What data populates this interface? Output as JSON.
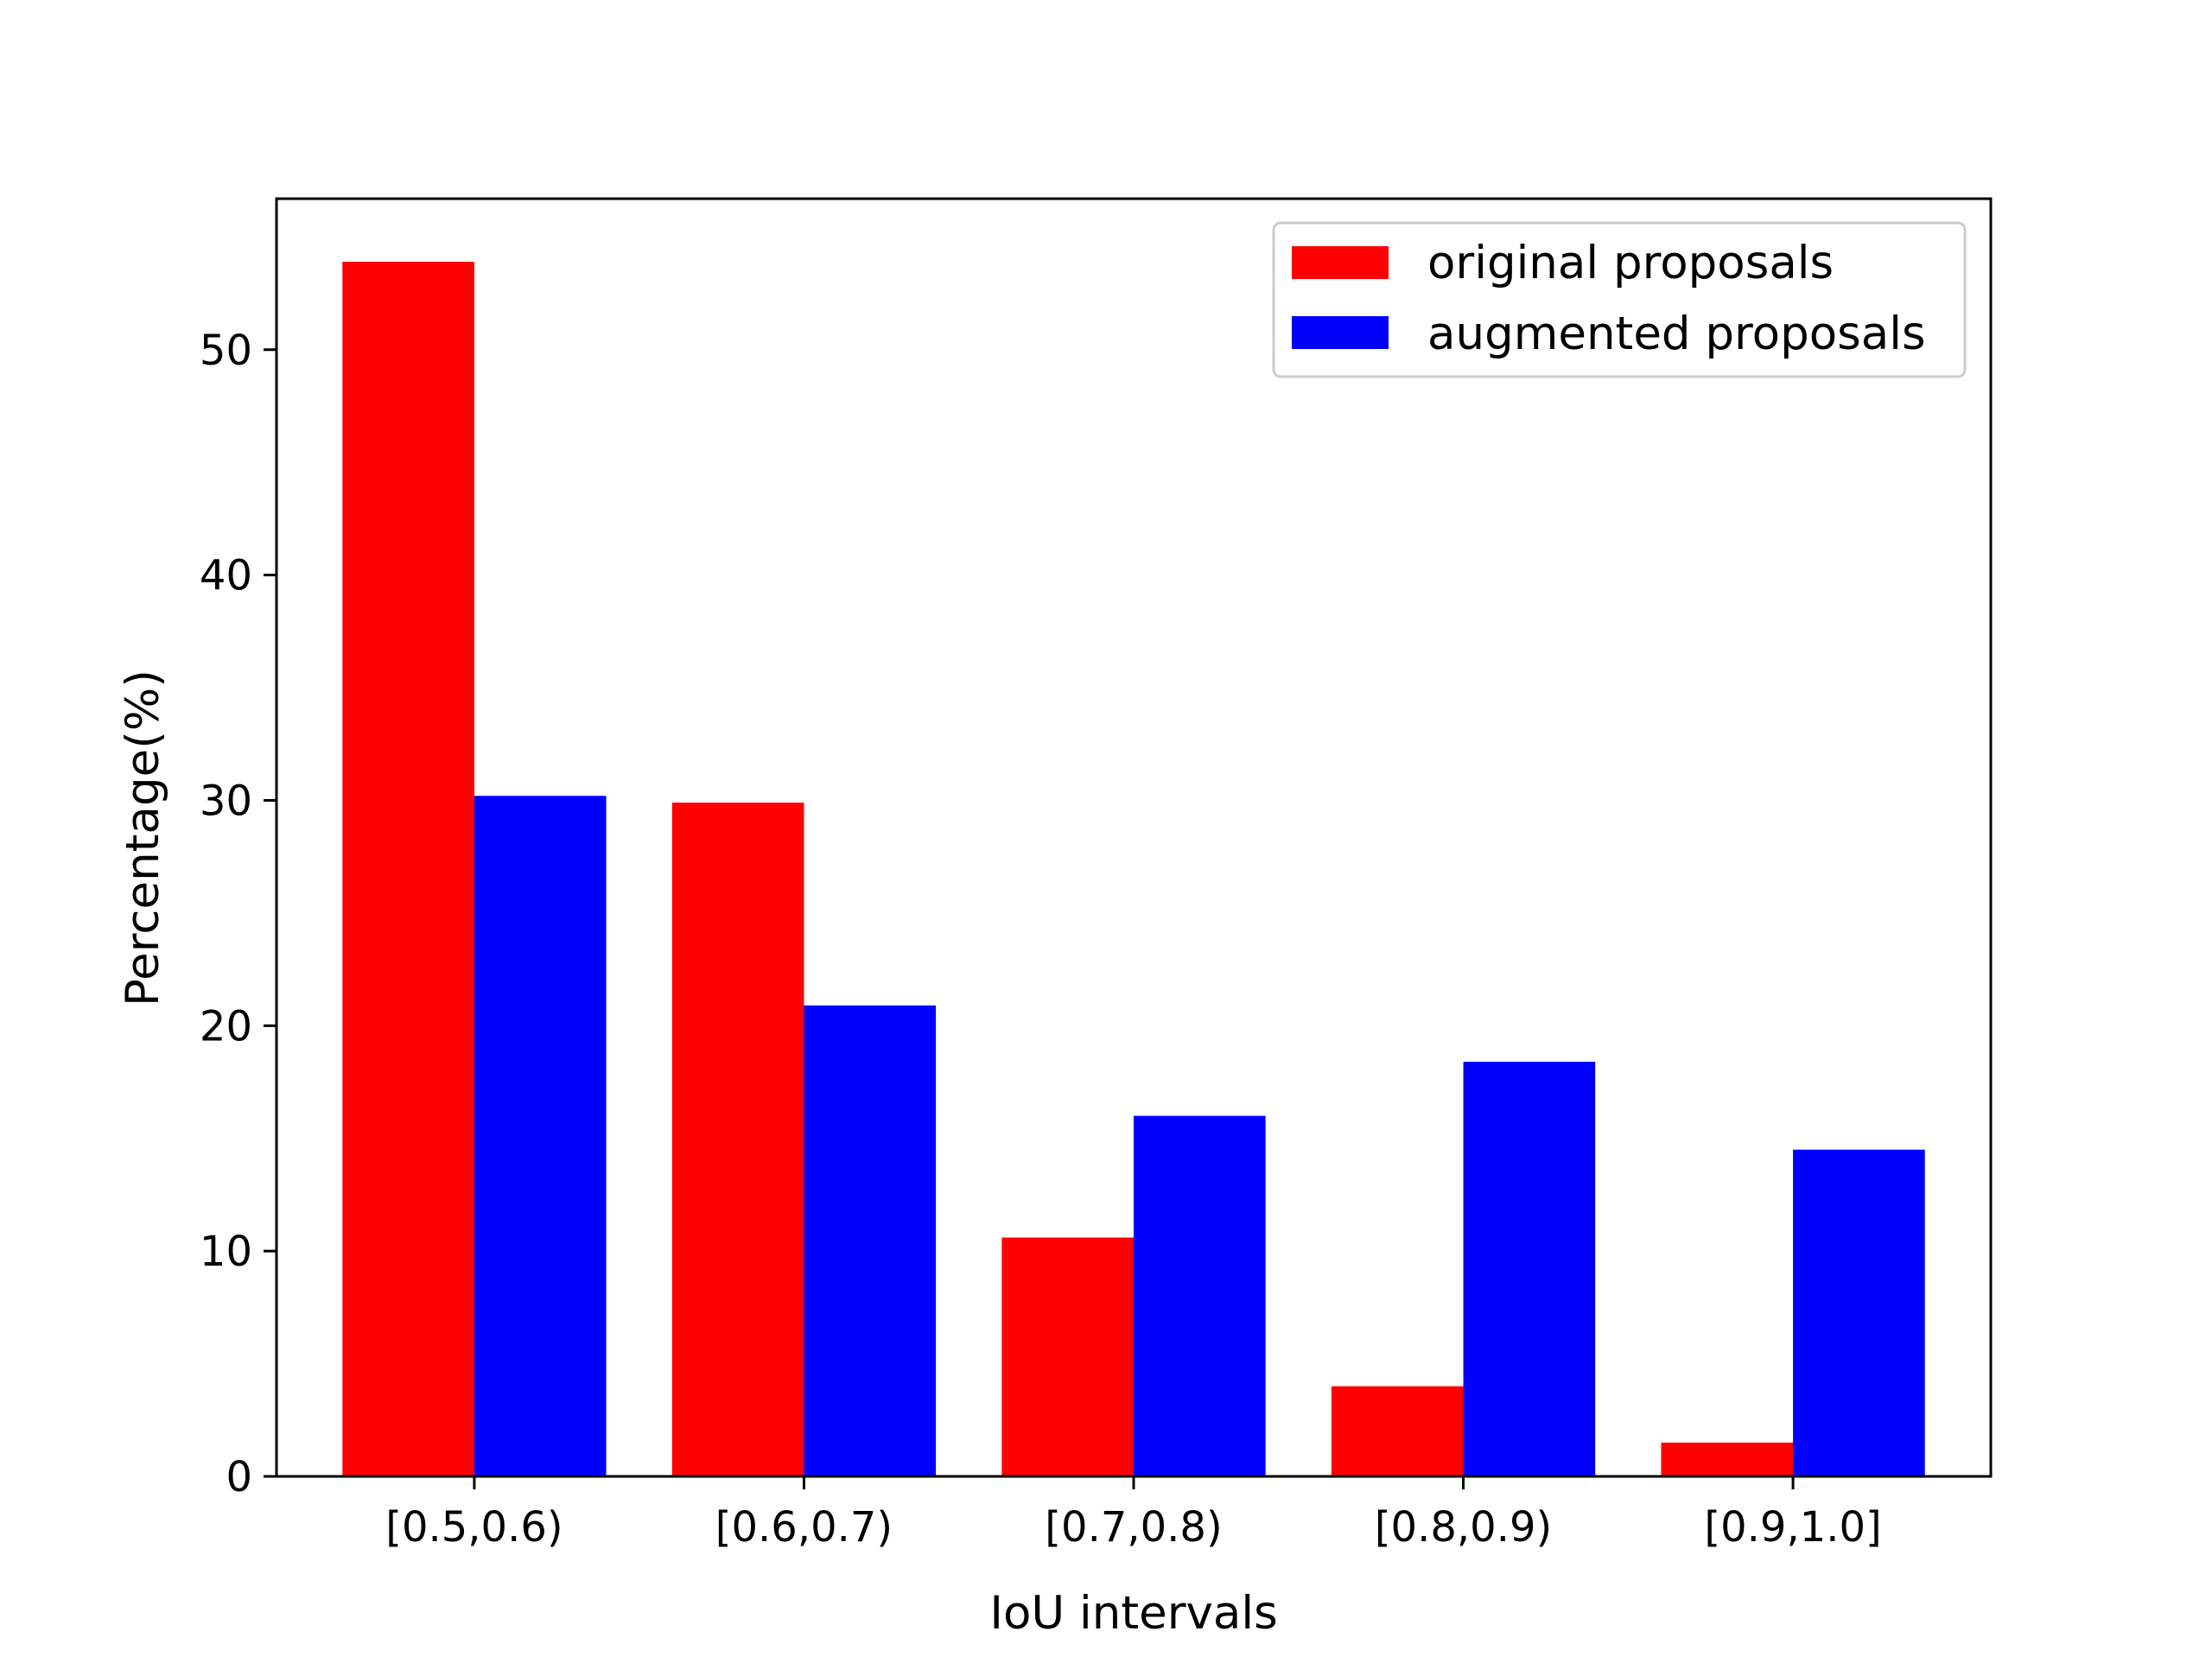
{
  "chart_data": {
    "type": "bar",
    "title": "",
    "xlabel": "IoU intervals",
    "ylabel": "Percentage(%)",
    "ylim": [
      0,
      56.7
    ],
    "yticks": [
      0,
      10,
      20,
      30,
      40,
      50
    ],
    "ytick_labels": [
      "0",
      "10",
      "20",
      "30",
      "40",
      "50"
    ],
    "categories": [
      "[0.5,0.6)",
      "[0.6,0.7)",
      "[0.7,0.8)",
      "[0.8,0.9)",
      "[0.9,1.0]"
    ],
    "series": [
      {
        "name": "original proposals",
        "color": "#ff0000",
        "values": [
          53.9,
          29.9,
          10.6,
          4.0,
          1.5
        ]
      },
      {
        "name": "augmented proposals",
        "color": "#0000ff",
        "values": [
          30.2,
          20.9,
          16.0,
          18.4,
          14.5
        ]
      }
    ],
    "legend_position": "top-right",
    "grid": false
  }
}
